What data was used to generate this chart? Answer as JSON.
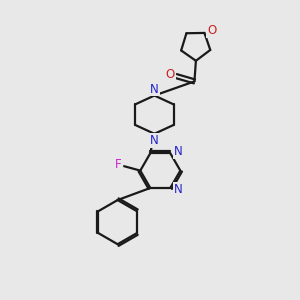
{
  "bg_color": "#e8e8e8",
  "bond_color": "#1a1a1a",
  "n_color": "#2222cc",
  "o_color": "#cc2222",
  "f_color": "#cc22cc",
  "line_width": 1.6,
  "figsize": [
    3.0,
    3.0
  ],
  "dpi": 100,
  "xlim": [
    0,
    10
  ],
  "ylim": [
    0,
    10
  ]
}
